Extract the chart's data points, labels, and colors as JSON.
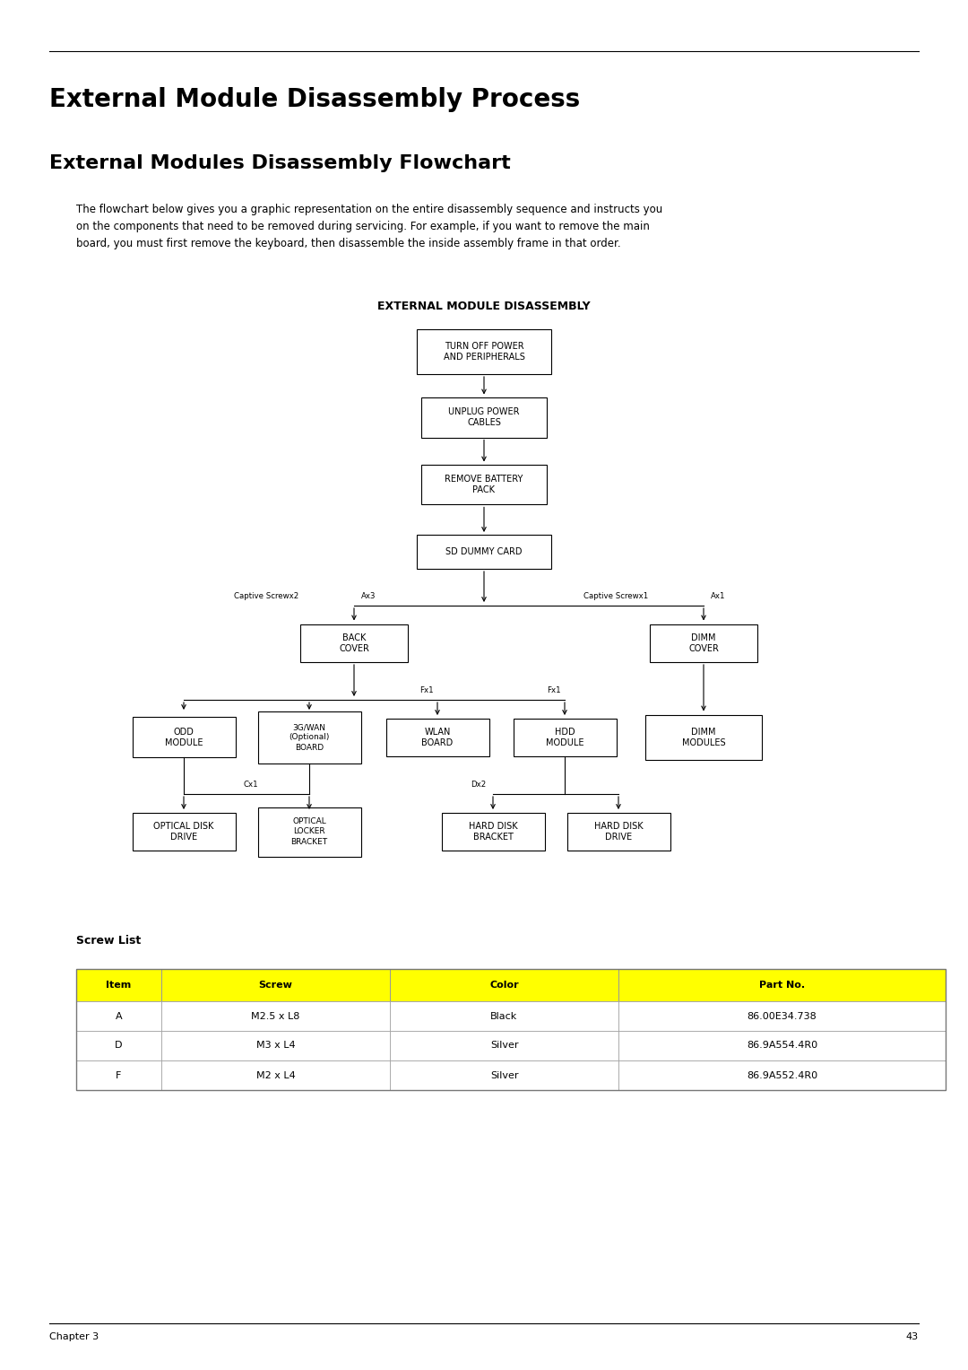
{
  "title1": "External Module Disassembly Process",
  "title2": "External Modules Disassembly Flowchart",
  "description": "The flowchart below gives you a graphic representation on the entire disassembly sequence and instructs you\non the components that need to be removed during servicing. For example, if you want to remove the main\nboard, you must first remove the keyboard, then disassemble the inside assembly frame in that order.",
  "flowchart_title": "EXTERNAL MODULE DISASSEMBLY",
  "bg_color": "#ffffff",
  "box_color": "#ffffff",
  "box_edge_color": "#000000",
  "footer_chapter": "Chapter 3",
  "footer_page": "43",
  "screw_list_title": "Screw List",
  "table_header": [
    "Item",
    "Screw",
    "Color",
    "Part No."
  ],
  "table_header_bg": "#ffff00",
  "table_rows": [
    [
      "A",
      "M2.5 x L8",
      "Black",
      "86.00E34.738"
    ],
    [
      "D",
      "M3 x L4",
      "Silver",
      "86.9A554.4R0"
    ],
    [
      "F",
      "M2 x L4",
      "Silver",
      "86.9A552.4R0"
    ]
  ]
}
